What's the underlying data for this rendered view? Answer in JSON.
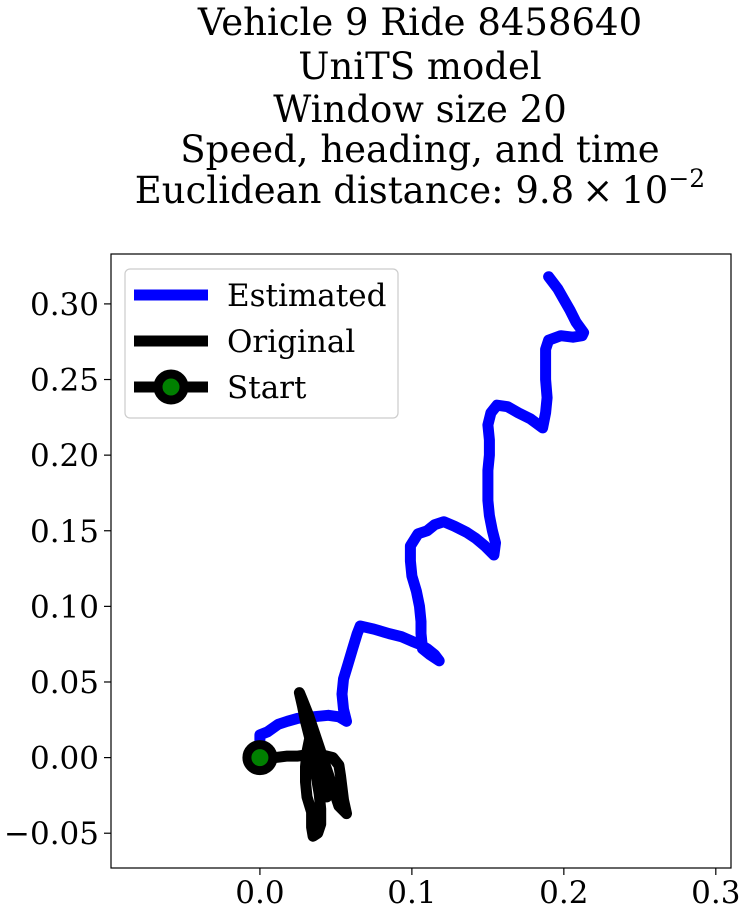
{
  "chart_data": {
    "type": "line",
    "title_lines": [
      "Vehicle 9 Ride 8458640",
      "UniTS model",
      "Window size 20",
      "Speed, heading, and time"
    ],
    "title_metric_prefix": "Euclidean distance: 9.8",
    "title_metric_times": "×",
    "title_metric_base": "10",
    "title_metric_exponent": "−2",
    "xlabel": "",
    "ylabel": "",
    "xlim": [
      -0.098,
      0.31
    ],
    "ylim": [
      -0.073,
      0.333
    ],
    "x_ticks": [
      0.0,
      0.1,
      0.2,
      0.3
    ],
    "x_tick_labels": [
      "0.0",
      "0.1",
      "0.2",
      "0.3"
    ],
    "y_ticks": [
      -0.05,
      0.0,
      0.05,
      0.1,
      0.15,
      0.2,
      0.25,
      0.3
    ],
    "y_tick_labels": [
      "−0.05",
      "0.00",
      "0.05",
      "0.10",
      "0.15",
      "0.20",
      "0.25",
      "0.30"
    ],
    "grid": false,
    "legend": {
      "position": "top-left",
      "entries": [
        "Estimated",
        "Original",
        "Start"
      ]
    },
    "series": [
      {
        "name": "Estimated",
        "color": "#0000ff",
        "points": [
          [
            0.0,
            0.0
          ],
          [
            0.0,
            0.015
          ],
          [
            0.005,
            0.017
          ],
          [
            0.012,
            0.022
          ],
          [
            0.018,
            0.024
          ],
          [
            0.025,
            0.026
          ],
          [
            0.035,
            0.027
          ],
          [
            0.045,
            0.028
          ],
          [
            0.052,
            0.027
          ],
          [
            0.057,
            0.024
          ],
          [
            0.055,
            0.032
          ],
          [
            0.054,
            0.042
          ],
          [
            0.055,
            0.052
          ],
          [
            0.058,
            0.062
          ],
          [
            0.061,
            0.072
          ],
          [
            0.064,
            0.082
          ],
          [
            0.066,
            0.087
          ],
          [
            0.075,
            0.085
          ],
          [
            0.085,
            0.082
          ],
          [
            0.093,
            0.08
          ],
          [
            0.1,
            0.077
          ],
          [
            0.105,
            0.075
          ],
          [
            0.11,
            0.072
          ],
          [
            0.115,
            0.068
          ],
          [
            0.118,
            0.064
          ],
          [
            0.112,
            0.068
          ],
          [
            0.107,
            0.072
          ],
          [
            0.106,
            0.082
          ],
          [
            0.106,
            0.09
          ],
          [
            0.105,
            0.1
          ],
          [
            0.103,
            0.11
          ],
          [
            0.1,
            0.12
          ],
          [
            0.099,
            0.13
          ],
          [
            0.099,
            0.14
          ],
          [
            0.104,
            0.148
          ],
          [
            0.11,
            0.15
          ],
          [
            0.115,
            0.154
          ],
          [
            0.121,
            0.156
          ],
          [
            0.128,
            0.153
          ],
          [
            0.136,
            0.149
          ],
          [
            0.142,
            0.145
          ],
          [
            0.148,
            0.14
          ],
          [
            0.154,
            0.134
          ],
          [
            0.155,
            0.142
          ],
          [
            0.153,
            0.15
          ],
          [
            0.151,
            0.16
          ],
          [
            0.15,
            0.17
          ],
          [
            0.15,
            0.18
          ],
          [
            0.15,
            0.19
          ],
          [
            0.151,
            0.2
          ],
          [
            0.151,
            0.21
          ],
          [
            0.15,
            0.22
          ],
          [
            0.152,
            0.228
          ],
          [
            0.156,
            0.233
          ],
          [
            0.163,
            0.232
          ],
          [
            0.17,
            0.228
          ],
          [
            0.178,
            0.224
          ],
          [
            0.186,
            0.218
          ],
          [
            0.188,
            0.228
          ],
          [
            0.189,
            0.238
          ],
          [
            0.188,
            0.25
          ],
          [
            0.188,
            0.26
          ],
          [
            0.188,
            0.27
          ],
          [
            0.19,
            0.276
          ],
          [
            0.198,
            0.279
          ],
          [
            0.206,
            0.278
          ],
          [
            0.212,
            0.279
          ],
          [
            0.213,
            0.281
          ],
          [
            0.208,
            0.288
          ],
          [
            0.204,
            0.296
          ],
          [
            0.2,
            0.303
          ],
          [
            0.196,
            0.31
          ],
          [
            0.19,
            0.318
          ]
        ]
      },
      {
        "name": "Original",
        "color": "#000000",
        "points": [
          [
            0.0,
            0.0
          ],
          [
            0.01,
            0.0
          ],
          [
            0.018,
            0.001
          ],
          [
            0.025,
            0.001
          ],
          [
            0.032,
            0.002
          ],
          [
            0.04,
            0.002
          ],
          [
            0.048,
            0.0
          ],
          [
            0.052,
            -0.005
          ],
          [
            0.053,
            -0.012
          ],
          [
            0.054,
            -0.02
          ],
          [
            0.055,
            -0.028
          ],
          [
            0.057,
            -0.037
          ],
          [
            0.052,
            -0.032
          ],
          [
            0.048,
            -0.02
          ],
          [
            0.044,
            -0.008
          ],
          [
            0.04,
            0.004
          ],
          [
            0.036,
            0.016
          ],
          [
            0.032,
            0.028
          ],
          [
            0.028,
            0.038
          ],
          [
            0.026,
            0.043
          ],
          [
            0.028,
            0.034
          ],
          [
            0.03,
            0.024
          ],
          [
            0.033,
            0.012
          ],
          [
            0.035,
            0.0
          ],
          [
            0.037,
            -0.012
          ],
          [
            0.039,
            -0.024
          ],
          [
            0.04,
            -0.034
          ],
          [
            0.04,
            -0.044
          ],
          [
            0.038,
            -0.05
          ],
          [
            0.035,
            -0.052
          ],
          [
            0.034,
            -0.046
          ],
          [
            0.034,
            -0.036
          ],
          [
            0.031,
            -0.026
          ],
          [
            0.03,
            -0.016
          ],
          [
            0.03,
            -0.006
          ],
          [
            0.031,
            0.004
          ],
          [
            0.033,
            0.014
          ],
          [
            0.034,
            0.022
          ],
          [
            0.036,
            0.014
          ],
          [
            0.038,
            0.004
          ],
          [
            0.04,
            -0.006
          ],
          [
            0.042,
            -0.018
          ],
          [
            0.044,
            -0.026
          ]
        ]
      },
      {
        "name": "Start",
        "color": "#000000",
        "marker_face": "#008000",
        "points": [
          [
            0.0,
            0.0
          ]
        ]
      }
    ]
  }
}
